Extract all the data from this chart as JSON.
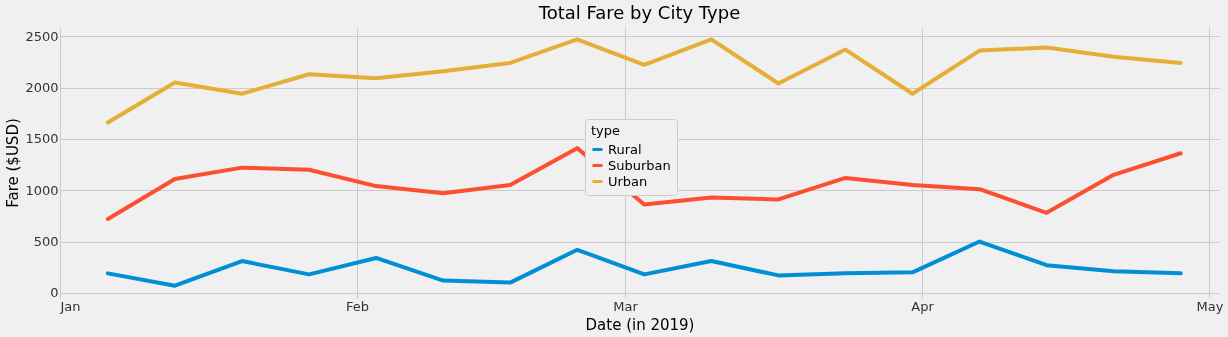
{
  "chart_data": {
    "type": "line",
    "title": "Total Fare by City Type",
    "xlabel": "Date (in 2019)",
    "ylabel": "Fare ($USD)",
    "legend_title": "type",
    "legend": "center",
    "grid": true,
    "line_style": "solid",
    "marker": "none",
    "x": [
      "2019-01-06",
      "2019-01-13",
      "2019-01-20",
      "2019-01-27",
      "2019-02-03",
      "2019-02-10",
      "2019-02-17",
      "2019-02-24",
      "2019-03-03",
      "2019-03-10",
      "2019-03-17",
      "2019-03-24",
      "2019-03-31",
      "2019-04-07",
      "2019-04-14",
      "2019-04-21",
      "2019-04-28"
    ],
    "xlim": [
      "2019-01-01",
      "2019-05-02"
    ],
    "xticks": [
      {
        "value": "2019-01-01",
        "label": "Jan"
      },
      {
        "value": "2019-02-01",
        "label": "Feb"
      },
      {
        "value": "2019-03-01",
        "label": "Mar"
      },
      {
        "value": "2019-04-01",
        "label": "Apr"
      },
      {
        "value": "2019-05-01",
        "label": "May"
      }
    ],
    "ylim": [
      -50,
      2590
    ],
    "yticks": [
      0,
      500,
      1000,
      1500,
      2000,
      2500
    ],
    "series": [
      {
        "name": "Rural",
        "color": "#008fd5",
        "values": [
          190,
          70,
          310,
          180,
          340,
          120,
          100,
          420,
          180,
          310,
          170,
          190,
          200,
          500,
          270,
          210,
          190
        ]
      },
      {
        "name": "Suburban",
        "color": "#fc4f30",
        "values": [
          720,
          1110,
          1220,
          1200,
          1040,
          970,
          1050,
          1410,
          860,
          930,
          910,
          1120,
          1050,
          1010,
          780,
          1150,
          1360
        ]
      },
      {
        "name": "Urban",
        "color": "#e5ae38",
        "values": [
          1660,
          2050,
          1940,
          2130,
          2090,
          2160,
          2240,
          2470,
          2220,
          2470,
          2040,
          2370,
          1940,
          2360,
          2390,
          2300,
          2240
        ]
      }
    ]
  }
}
